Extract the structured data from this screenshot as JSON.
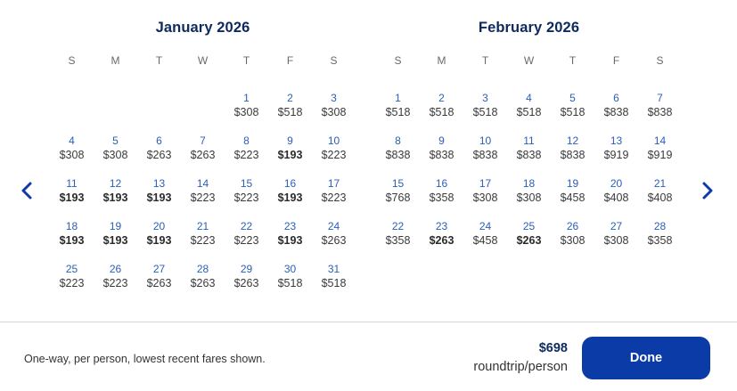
{
  "calendar": {
    "months": [
      {
        "title": "January 2026",
        "days_of_week": [
          "S",
          "M",
          "T",
          "W",
          "T",
          "F",
          "S"
        ],
        "leading_blanks": 4,
        "days": [
          {
            "day": "1",
            "price": "$308",
            "lowest": false
          },
          {
            "day": "2",
            "price": "$518",
            "lowest": false
          },
          {
            "day": "3",
            "price": "$308",
            "lowest": false
          },
          {
            "day": "4",
            "price": "$308",
            "lowest": false
          },
          {
            "day": "5",
            "price": "$308",
            "lowest": false
          },
          {
            "day": "6",
            "price": "$263",
            "lowest": false
          },
          {
            "day": "7",
            "price": "$263",
            "lowest": false
          },
          {
            "day": "8",
            "price": "$223",
            "lowest": false
          },
          {
            "day": "9",
            "price": "$193",
            "lowest": true
          },
          {
            "day": "10",
            "price": "$223",
            "lowest": false
          },
          {
            "day": "11",
            "price": "$193",
            "lowest": true
          },
          {
            "day": "12",
            "price": "$193",
            "lowest": true
          },
          {
            "day": "13",
            "price": "$193",
            "lowest": true
          },
          {
            "day": "14",
            "price": "$223",
            "lowest": false
          },
          {
            "day": "15",
            "price": "$223",
            "lowest": false
          },
          {
            "day": "16",
            "price": "$193",
            "lowest": true
          },
          {
            "day": "17",
            "price": "$223",
            "lowest": false
          },
          {
            "day": "18",
            "price": "$193",
            "lowest": true
          },
          {
            "day": "19",
            "price": "$193",
            "lowest": true
          },
          {
            "day": "20",
            "price": "$193",
            "lowest": true
          },
          {
            "day": "21",
            "price": "$223",
            "lowest": false
          },
          {
            "day": "22",
            "price": "$223",
            "lowest": false
          },
          {
            "day": "23",
            "price": "$193",
            "lowest": true
          },
          {
            "day": "24",
            "price": "$263",
            "lowest": false
          },
          {
            "day": "25",
            "price": "$223",
            "lowest": false
          },
          {
            "day": "26",
            "price": "$223",
            "lowest": false
          },
          {
            "day": "27",
            "price": "$263",
            "lowest": false
          },
          {
            "day": "28",
            "price": "$263",
            "lowest": false
          },
          {
            "day": "29",
            "price": "$263",
            "lowest": false
          },
          {
            "day": "30",
            "price": "$518",
            "lowest": false
          },
          {
            "day": "31",
            "price": "$518",
            "lowest": false
          }
        ]
      },
      {
        "title": "February 2026",
        "days_of_week": [
          "S",
          "M",
          "T",
          "W",
          "T",
          "F",
          "S"
        ],
        "leading_blanks": 0,
        "days": [
          {
            "day": "1",
            "price": "$518",
            "lowest": false
          },
          {
            "day": "2",
            "price": "$518",
            "lowest": false
          },
          {
            "day": "3",
            "price": "$518",
            "lowest": false
          },
          {
            "day": "4",
            "price": "$518",
            "lowest": false
          },
          {
            "day": "5",
            "price": "$518",
            "lowest": false
          },
          {
            "day": "6",
            "price": "$838",
            "lowest": false
          },
          {
            "day": "7",
            "price": "$838",
            "lowest": false
          },
          {
            "day": "8",
            "price": "$838",
            "lowest": false
          },
          {
            "day": "9",
            "price": "$838",
            "lowest": false
          },
          {
            "day": "10",
            "price": "$838",
            "lowest": false
          },
          {
            "day": "11",
            "price": "$838",
            "lowest": false
          },
          {
            "day": "12",
            "price": "$838",
            "lowest": false
          },
          {
            "day": "13",
            "price": "$919",
            "lowest": false
          },
          {
            "day": "14",
            "price": "$919",
            "lowest": false
          },
          {
            "day": "15",
            "price": "$768",
            "lowest": false
          },
          {
            "day": "16",
            "price": "$358",
            "lowest": false
          },
          {
            "day": "17",
            "price": "$308",
            "lowest": false
          },
          {
            "day": "18",
            "price": "$308",
            "lowest": false
          },
          {
            "day": "19",
            "price": "$458",
            "lowest": false
          },
          {
            "day": "20",
            "price": "$408",
            "lowest": false
          },
          {
            "day": "21",
            "price": "$408",
            "lowest": false
          },
          {
            "day": "22",
            "price": "$358",
            "lowest": false
          },
          {
            "day": "23",
            "price": "$263",
            "lowest": true
          },
          {
            "day": "24",
            "price": "$458",
            "lowest": false
          },
          {
            "day": "25",
            "price": "$263",
            "lowest": true
          },
          {
            "day": "26",
            "price": "$308",
            "lowest": false
          },
          {
            "day": "27",
            "price": "$308",
            "lowest": false
          },
          {
            "day": "28",
            "price": "$358",
            "lowest": false
          }
        ]
      }
    ],
    "prev_icon": "chevron-left-icon",
    "next_icon": "chevron-right-icon"
  },
  "footer": {
    "note": "One-way, per person, lowest recent fares shown.",
    "price": "$698",
    "price_subtext": "roundtrip/person",
    "done_label": "Done"
  },
  "colors": {
    "accent": "#0b3ba6",
    "title": "#0e2a5c",
    "day_number": "#2a5fb8"
  }
}
